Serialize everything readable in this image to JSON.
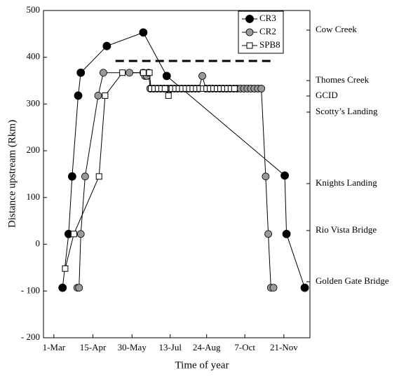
{
  "chart_data": {
    "type": "line",
    "xlabel": "Time of year",
    "ylabel": "Distance upstream (Rkm)",
    "xlim": [
      48,
      355
    ],
    "xticks": [
      {
        "value": 60,
        "label": "1-Mar"
      },
      {
        "value": 105,
        "label": "15-Apr"
      },
      {
        "value": 150,
        "label": "30-May"
      },
      {
        "value": 194,
        "label": "13-Jul"
      },
      {
        "value": 236,
        "label": "24-Aug"
      },
      {
        "value": 280,
        "label": "7-Oct"
      },
      {
        "value": 325,
        "label": "21-Nov"
      }
    ],
    "ylim": [
      -200,
      500
    ],
    "yticks": [
      {
        "value": -200,
        "label": "- 200"
      },
      {
        "value": -100,
        "label": "- 100"
      },
      0,
      100,
      200,
      300,
      400,
      500
    ],
    "line_color": "#000000",
    "series": [
      {
        "name": "CR3",
        "color": "#000000",
        "marker": "circle",
        "x": [
          70,
          77,
          81,
          88,
          91,
          121,
          163,
          190,
          326,
          328,
          349
        ],
        "values": [
          -93,
          22,
          145,
          318,
          367,
          424,
          453,
          360,
          147,
          22,
          -93
        ]
      },
      {
        "name": "CR2",
        "color": "#999999",
        "marker": "circle",
        "x": [
          87,
          89,
          91,
          96,
          111,
          117,
          147,
          163,
          165,
          167,
          169,
          171,
          175,
          179,
          183,
          187,
          191,
          195,
          199,
          203,
          207,
          211,
          215,
          219,
          223,
          227,
          231,
          235,
          239,
          243,
          247,
          251,
          255,
          259,
          263,
          267,
          271,
          275,
          279,
          283,
          287,
          291,
          295,
          299,
          304,
          307,
          310,
          313
        ],
        "values": [
          -93,
          -93,
          22,
          145,
          318,
          367,
          367,
          367,
          360,
          360,
          367,
          333,
          333,
          333,
          333,
          333,
          333,
          333,
          333,
          333,
          333,
          333,
          333,
          333,
          333,
          333,
          360,
          333,
          333,
          333,
          333,
          333,
          333,
          333,
          333,
          333,
          333,
          333,
          333,
          333,
          333,
          333,
          333,
          333,
          145,
          22,
          -93,
          -93
        ]
      },
      {
        "name": "SPB8",
        "color": "#ffffff",
        "marker": "square",
        "x": [
          73,
          83,
          112,
          119,
          139,
          163,
          170,
          172,
          176,
          180,
          184,
          188,
          192,
          196,
          200,
          204,
          208,
          212,
          216,
          220,
          224,
          228,
          232,
          236,
          240,
          244,
          248,
          252,
          256,
          260,
          264,
          268
        ],
        "values": [
          -52,
          22,
          145,
          318,
          367,
          367,
          367,
          333,
          333,
          333,
          333,
          333,
          318,
          333,
          333,
          333,
          333,
          333,
          333,
          333,
          333,
          333,
          333,
          333,
          333,
          333,
          333,
          333,
          333,
          333,
          333,
          333
        ]
      }
    ],
    "reference_line": {
      "y": 392,
      "x": [
        131,
        315
      ]
    },
    "annotations": [
      "Cow Creek",
      "Thomes Creek",
      "GCID",
      "Scotty’s Landing",
      "Knights Landing",
      "Rio Vista Bridge",
      "Golden Gate Bridge"
    ]
  }
}
